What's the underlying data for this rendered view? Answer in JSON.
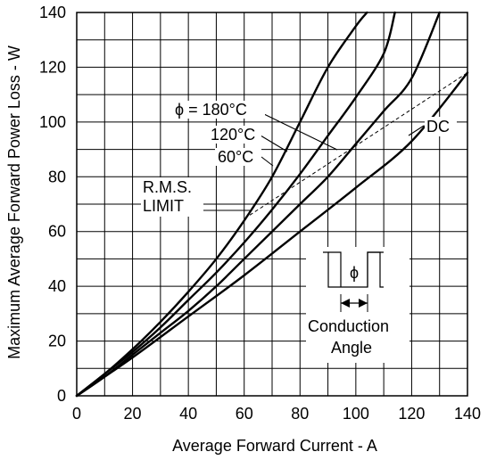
{
  "chart_data": {
    "type": "line",
    "xlabel": "Average Forward Current - A",
    "ylabel": "Maximum Average Forward Power Loss - W",
    "xlim": [
      0,
      140
    ],
    "ylim": [
      0,
      140
    ],
    "x_ticks": [
      0,
      20,
      40,
      60,
      80,
      100,
      120,
      140
    ],
    "y_ticks": [
      0,
      20,
      40,
      60,
      80,
      100,
      120,
      140
    ],
    "grid": true,
    "series": [
      {
        "name": "180°C",
        "x": [
          0,
          10,
          20,
          30,
          40,
          50,
          60,
          70,
          80,
          90,
          100,
          104
        ],
        "y": [
          0,
          8,
          17,
          27,
          38,
          50,
          64,
          80,
          100,
          120,
          135,
          140
        ]
      },
      {
        "name": "120°C",
        "x": [
          0,
          10,
          20,
          30,
          40,
          50,
          60,
          70,
          80,
          90,
          100,
          110,
          114
        ],
        "y": [
          0,
          8,
          16,
          25,
          35,
          45,
          56,
          68,
          81,
          95,
          109,
          125,
          140
        ]
      },
      {
        "name": "60°C",
        "x": [
          0,
          10,
          20,
          30,
          40,
          50,
          60,
          70,
          80,
          90,
          100,
          110,
          120,
          130
        ],
        "y": [
          0,
          7,
          15,
          23,
          31,
          40,
          50,
          60,
          70,
          80,
          92,
          104,
          116,
          140
        ]
      },
      {
        "name": "DC",
        "x": [
          0,
          20,
          40,
          60,
          80,
          100,
          120,
          140
        ],
        "y": [
          0,
          14,
          29,
          44,
          60,
          76,
          93,
          118
        ]
      }
    ],
    "rms_limit": {
      "x": [
        62,
        140
      ],
      "y": [
        66,
        118
      ]
    },
    "annotations": {
      "phi_180": "ϕ = 180°C",
      "phi_120": "120°C",
      "phi_60": "60°C",
      "dc": "DC",
      "rms_line1": "R.M.S.",
      "rms_line2": "LIMIT",
      "phi_symbol": "ϕ",
      "conduction_line1": "Conduction",
      "conduction_line2": "Angle"
    }
  }
}
